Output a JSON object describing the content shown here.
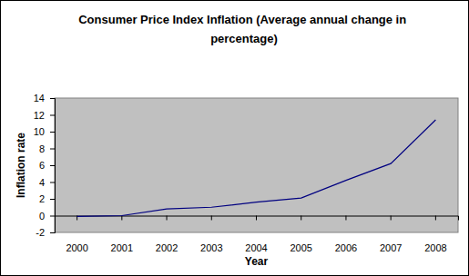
{
  "chart_data": {
    "type": "line",
    "title": "Consumer Price Index Inflation (Average annual change in percentage)",
    "x_label": "Year",
    "y_label": "Inflation rate",
    "categories": [
      "2000",
      "2001",
      "2002",
      "2003",
      "2004",
      "2005",
      "2006",
      "2007",
      "2008"
    ],
    "values": [
      -0.1,
      0.0,
      0.8,
      1.0,
      1.6,
      2.1,
      4.2,
      6.2,
      11.4
    ],
    "color": "#000080",
    "ylim": [
      -2,
      14
    ],
    "yticks": [
      -2,
      0,
      2,
      4,
      6,
      8,
      10,
      12,
      14
    ],
    "grid": false
  }
}
